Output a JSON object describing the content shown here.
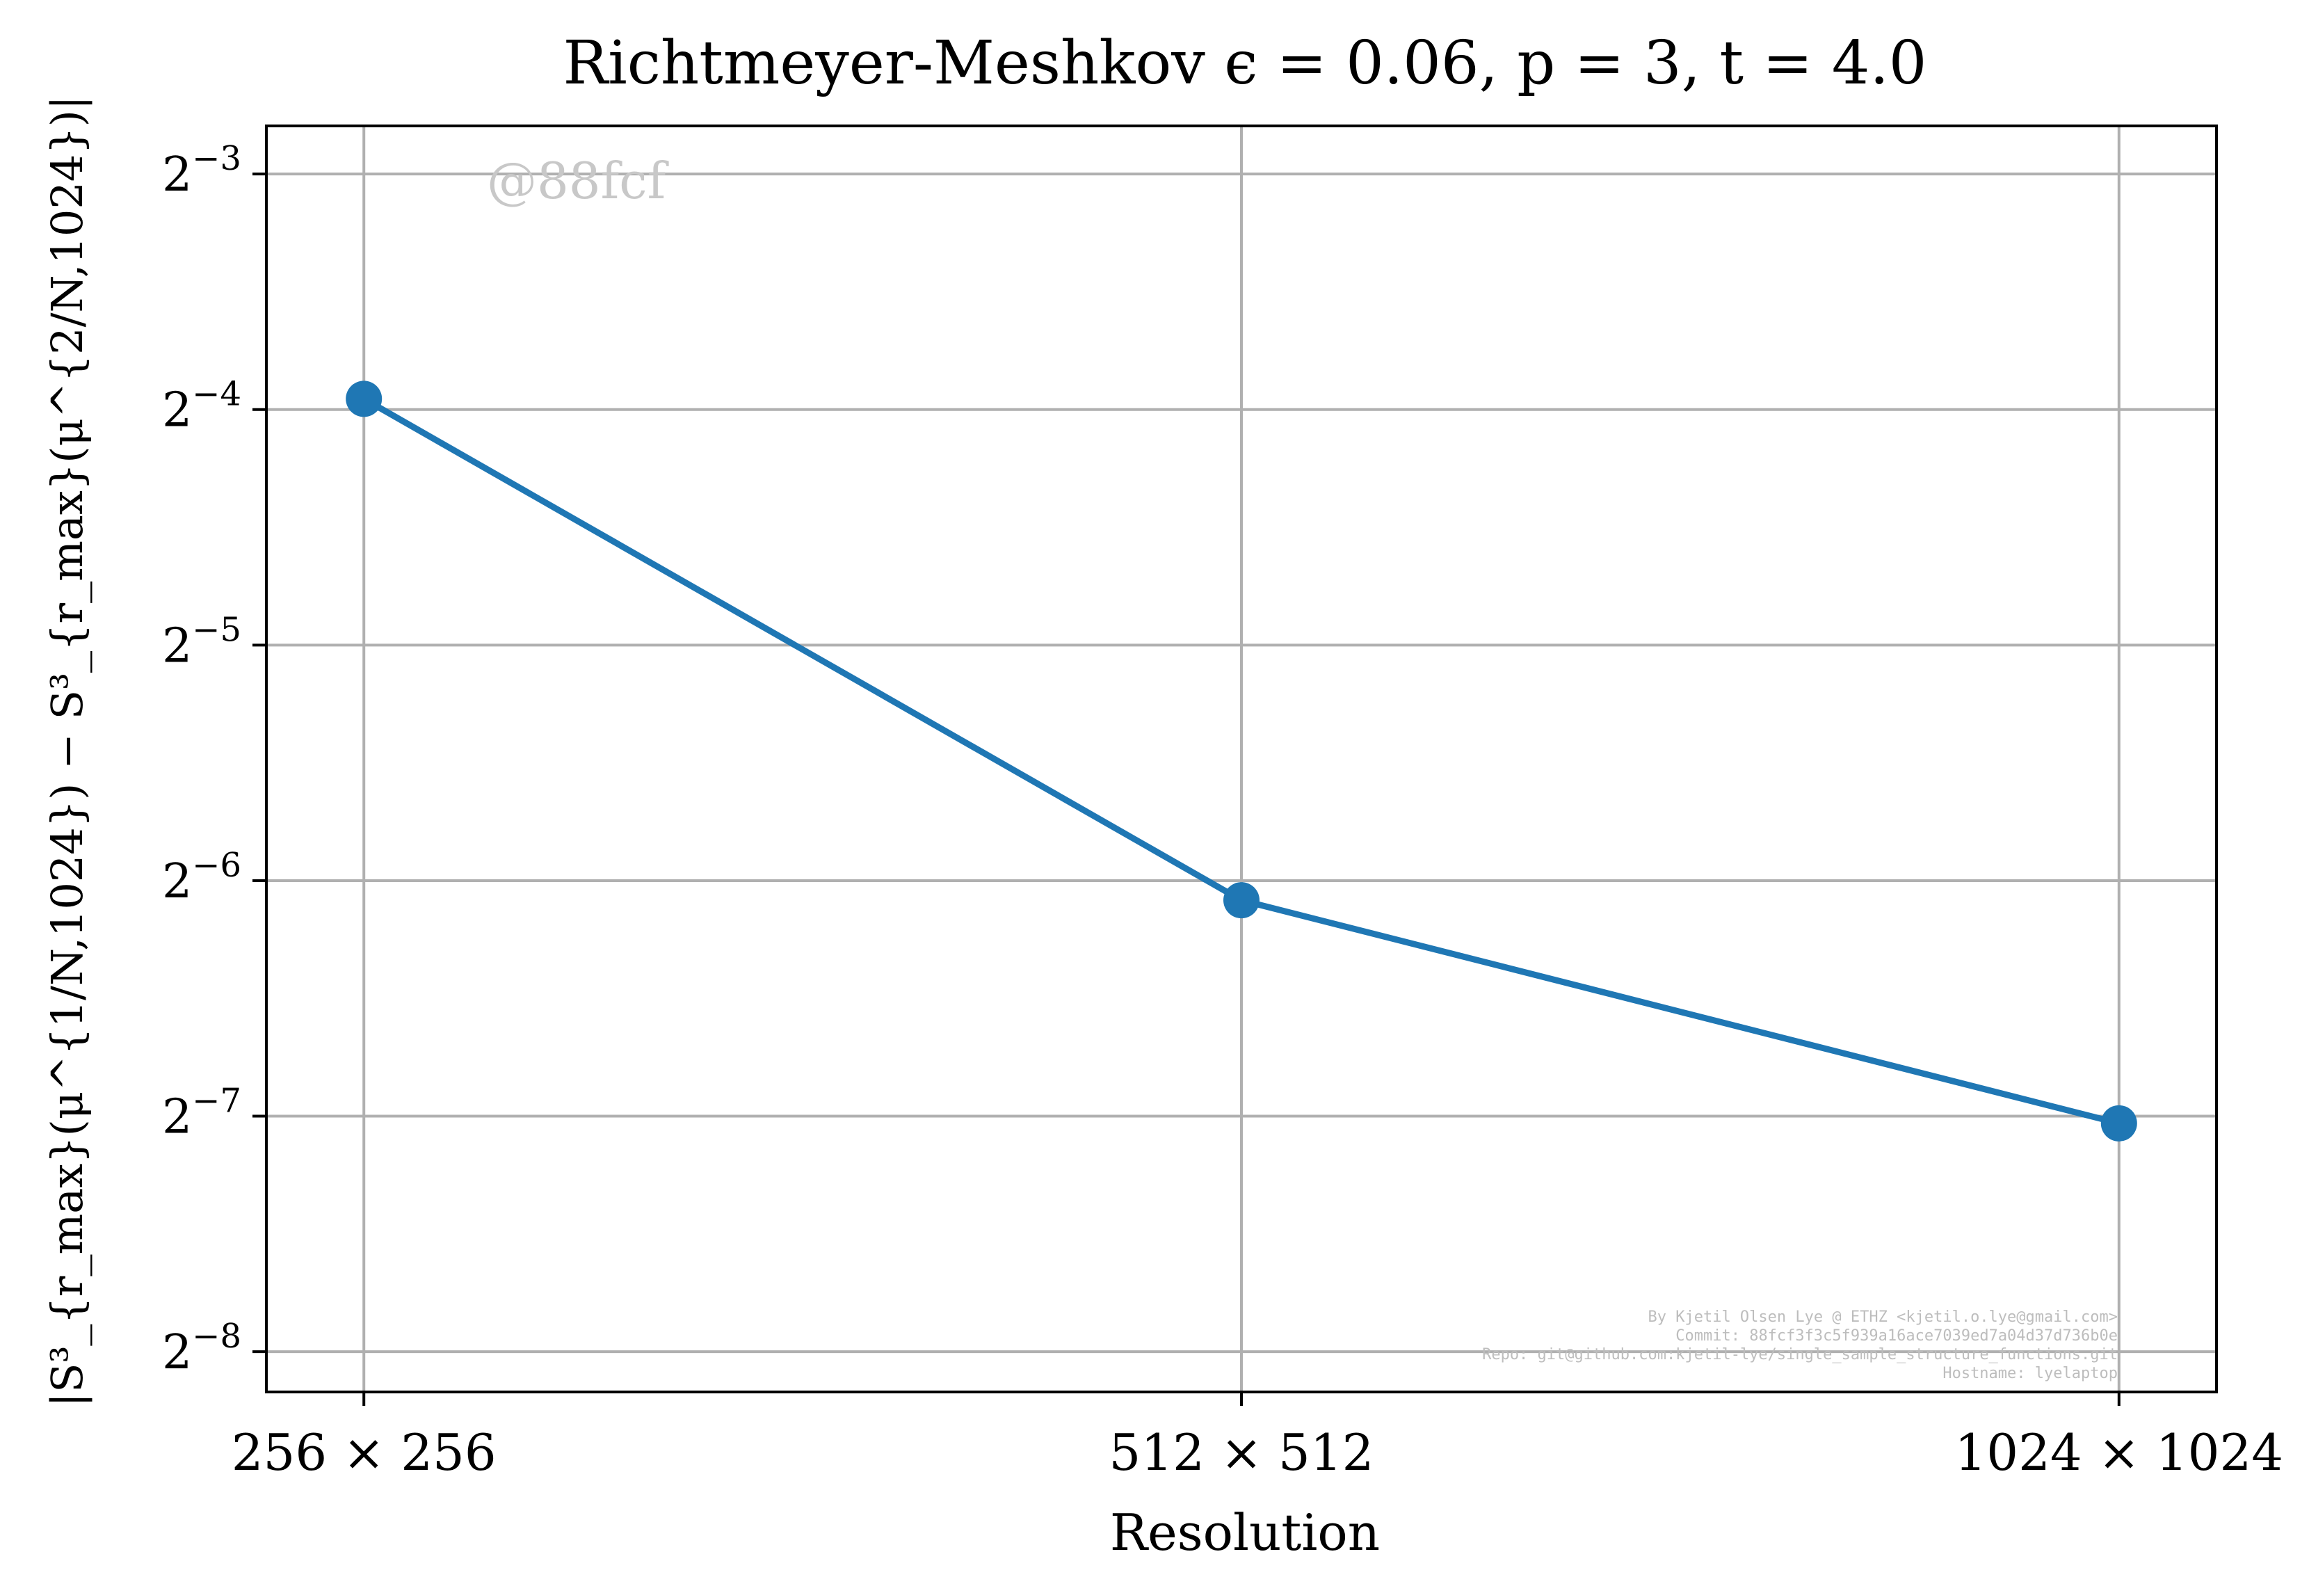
{
  "chart_data": {
    "type": "line",
    "title": "Richtmeyer-Meshkov ϵ = 0.06, p = 3, t = 4.0",
    "xlabel": "Resolution",
    "ylabel": "|S³_{r_max}(μ^{1/N,1024}) − S³_{r_max}(μ^{2/N,1024})|",
    "yscale": "log2",
    "ylim": [
      0.00347,
      0.144
    ],
    "grid": true,
    "categories": [
      "256 × 256",
      "512 × 512",
      "1024 × 1024"
    ],
    "yticks": [
      {
        "value": 0.125,
        "base": "2",
        "exp": "−3"
      },
      {
        "value": 0.0625,
        "base": "2",
        "exp": "−4"
      },
      {
        "value": 0.03125,
        "base": "2",
        "exp": "−5"
      },
      {
        "value": 0.015625,
        "base": "2",
        "exp": "−6"
      },
      {
        "value": 0.0078125,
        "base": "2",
        "exp": "−7"
      },
      {
        "value": 0.00390625,
        "base": "2",
        "exp": "−8"
      }
    ],
    "series": [
      {
        "values": [
          0.0645,
          0.01475,
          0.00765
        ],
        "color": "#1f77b4"
      }
    ]
  },
  "watermark": "@88fcf",
  "footer_lines": [
    "By Kjetil Olsen Lye @ ETHZ <kjetil.o.lye@gmail.com>",
    "Commit: 88fcf3f3c5f939a16ace7039ed7a04d37d736b0e",
    "Repo: git@github.com:kjetil-lye/single_sample_structure_functions.git",
    "Hostname: lyelaptop"
  ],
  "colors": {
    "grid": "#b0b0b0",
    "axes": "#000000",
    "watermark": "#c8c8c8",
    "footer": "#bdbdbd"
  }
}
